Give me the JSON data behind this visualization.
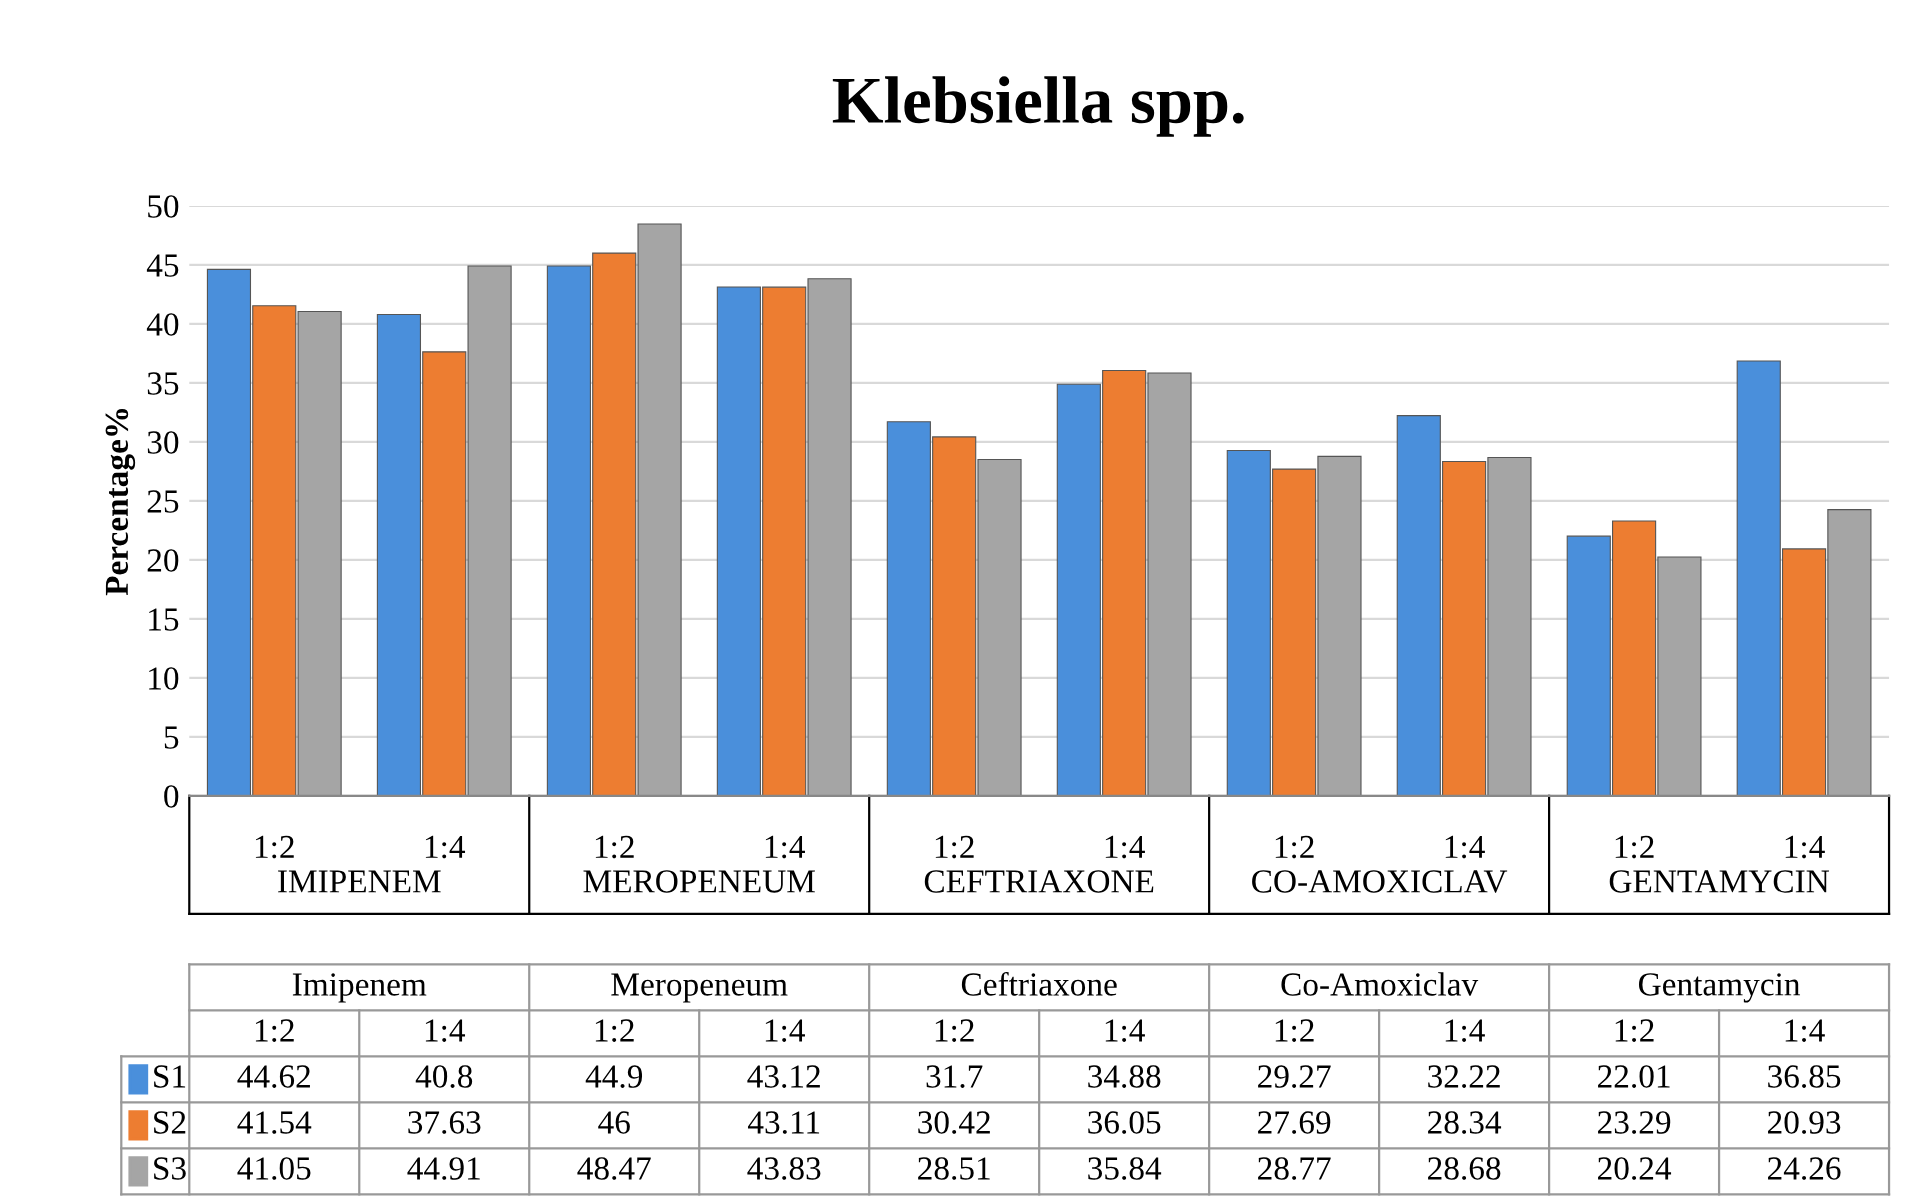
{
  "chart_data": {
    "type": "bar",
    "title": "Klebsiella spp.",
    "ylabel": "Percentage%",
    "categories": [
      "1:2",
      "1:4",
      "1:2",
      "1:4",
      "1:2",
      "1:4",
      "1:2",
      "1:4",
      "1:2",
      "1:4"
    ],
    "series": [
      {
        "name": "S1",
        "color": "#4a8fdb",
        "values": [
          44.62,
          40.8,
          44.9,
          43.12,
          31.7,
          34.88,
          29.27,
          32.22,
          22.01,
          36.85
        ]
      },
      {
        "name": "S2",
        "color": "#ed7d31",
        "values": [
          41.54,
          37.63,
          46,
          43.11,
          30.42,
          36.05,
          27.69,
          28.34,
          23.29,
          20.93
        ]
      },
      {
        "name": "S3",
        "color": "#a5a5a5",
        "values": [
          41.05,
          44.91,
          48.47,
          43.83,
          28.51,
          35.84,
          28.77,
          28.68,
          20.24,
          24.26
        ]
      }
    ],
    "annotations": [
      "IMIPENEM",
      "MEROPENEUM",
      "CEFTRIAXONE",
      "CO-AMOXICLAV",
      "GENTAMYCIN",
      "Imipenem",
      "Meropeneum",
      "Ceftriaxone",
      "Co-Amoxiclav",
      "Gentamycin"
    ],
    "ylim": [
      0,
      50
    ],
    "yticks": [
      0,
      5,
      10,
      15,
      20,
      25,
      30,
      35,
      40,
      45,
      50
    ],
    "grid": "y",
    "legend": "bottom",
    "data_labels": true
  }
}
